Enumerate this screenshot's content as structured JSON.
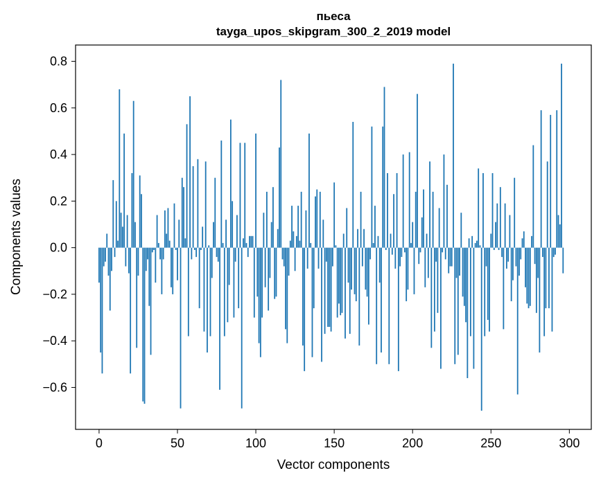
{
  "chart_data": {
    "type": "bar",
    "title": "пьеса",
    "subtitle": "tayga_upos_skipgram_300_2_2019 model",
    "xlabel": "Vector components",
    "ylabel": "Components values",
    "xlim": [
      -15,
      314
    ],
    "ylim": [
      -0.78,
      0.87
    ],
    "xticks": [
      0,
      50,
      100,
      150,
      200,
      250,
      300
    ],
    "xtick_labels": [
      "0",
      "50",
      "100",
      "150",
      "200",
      "250",
      "300"
    ],
    "yticks": [
      -0.6,
      -0.4,
      -0.2,
      0.0,
      0.2,
      0.4,
      0.6,
      0.8
    ],
    "ytick_labels": [
      "−0.6",
      "−0.4",
      "−0.2",
      "0.0",
      "0.2",
      "0.4",
      "0.6",
      "0.8"
    ],
    "grid": false,
    "bar_color": "#1f77b4",
    "x_start": 0,
    "values": [
      -0.15,
      -0.45,
      -0.54,
      -0.08,
      -0.06,
      0.06,
      -0.12,
      -0.27,
      -0.1,
      0.29,
      -0.04,
      0.2,
      0.03,
      0.68,
      0.15,
      0.09,
      0.49,
      -0.08,
      0.14,
      -0.11,
      -0.54,
      0.32,
      0.63,
      0.11,
      -0.43,
      -0.12,
      0.31,
      0.23,
      -0.66,
      -0.67,
      -0.1,
      -0.05,
      -0.25,
      -0.46,
      -0.02,
      -0.01,
      -0.15,
      0.14,
      0.02,
      -0.05,
      -0.2,
      -0.05,
      0.16,
      0.06,
      0.17,
      0.03,
      -0.17,
      -0.2,
      0.19,
      -0.01,
      -0.14,
      0.12,
      -0.69,
      0.3,
      0.26,
      0.04,
      0.53,
      -0.38,
      0.65,
      -0.05,
      0.35,
      -0.01,
      -0.04,
      0.38,
      -0.26,
      -0.01,
      0.09,
      -0.36,
      0.37,
      -0.45,
      0.01,
      -0.38,
      -0.13,
      0.11,
      0.3,
      -0.04,
      -0.06,
      -0.61,
      0.46,
      0.02,
      -0.38,
      0.12,
      -0.32,
      -0.16,
      0.55,
      0.2,
      -0.3,
      -0.06,
      0.14,
      -0.26,
      0.45,
      -0.69,
      0.04,
      0.45,
      0.02,
      -0.04,
      0.05,
      0.05,
      0.05,
      -0.3,
      0.49,
      -0.21,
      -0.41,
      -0.47,
      -0.3,
      0.15,
      -0.17,
      0.24,
      -0.27,
      -0.13,
      0.11,
      0.26,
      -0.22,
      -0.21,
      0.08,
      0.43,
      0.72,
      -0.05,
      -0.08,
      -0.35,
      -0.41,
      -0.12,
      0.03,
      0.18,
      0.07,
      -0.1,
      0.05,
      0.18,
      0.03,
      0.24,
      -0.42,
      -0.53,
      0.16,
      -0.09,
      0.49,
      0.02,
      -0.47,
      -0.26,
      0.22,
      0.25,
      -0.09,
      0.24,
      -0.49,
      0.12,
      -0.37,
      -0.06,
      -0.34,
      -0.34,
      -0.36,
      -0.08,
      0.28,
      0.01,
      -0.3,
      -0.24,
      -0.29,
      -0.28,
      0.06,
      -0.39,
      0.17,
      -0.15,
      -0.37,
      -0.18,
      0.54,
      -0.2,
      -0.23,
      0.08,
      -0.42,
      0.24,
      -0.08,
      0.08,
      -0.18,
      -0.21,
      -0.33,
      -0.05,
      0.52,
      0.02,
      0.18,
      -0.5,
      0.05,
      -0.15,
      -0.45,
      0.52,
      0.69,
      -0.01,
      0.32,
      -0.5,
      0.06,
      -0.03,
      0.23,
      -0.09,
      0.32,
      -0.53,
      -0.08,
      -0.04,
      0.4,
      -0.02,
      -0.23,
      -0.18,
      0.41,
      0.02,
      0.11,
      -0.2,
      0.24,
      0.66,
      -0.07,
      -0.02,
      0.13,
      0.25,
      -0.17,
      0.06,
      -0.13,
      0.37,
      -0.43,
      0.24,
      -0.36,
      -0.06,
      -0.28,
      0.17,
      -0.52,
      -0.02,
      0.4,
      -0.05,
      0.27,
      -0.11,
      -0.08,
      -0.08,
      0.79,
      -0.5,
      -0.13,
      -0.46,
      -0.12,
      0.15,
      -0.21,
      -0.25,
      -0.32,
      -0.56,
      0.04,
      -0.38,
      0.05,
      -0.52,
      0.02,
      0.03,
      0.34,
      0.01,
      -0.7,
      0.32,
      -0.38,
      -0.08,
      -0.31,
      -0.36,
      0.06,
      0.32,
      -0.01,
      0.11,
      0.19,
      -0.01,
      0.26,
      -0.04,
      -0.35,
      0.19,
      -0.09,
      -0.06,
      0.14,
      -0.23,
      -0.14,
      0.3,
      -0.08,
      -0.63,
      -0.12,
      -0.05,
      0.04,
      0.07,
      -0.17,
      -0.24,
      -0.26,
      -0.25,
      0.05,
      0.44,
      -0.07,
      -0.28,
      -0.13,
      -0.45,
      0.59,
      -0.04,
      -0.38,
      -0.26,
      0.37,
      -0.26,
      0.57,
      -0.36,
      -0.04,
      -0.03,
      0.59,
      0.14,
      0.1,
      0.79,
      -0.11
    ]
  }
}
